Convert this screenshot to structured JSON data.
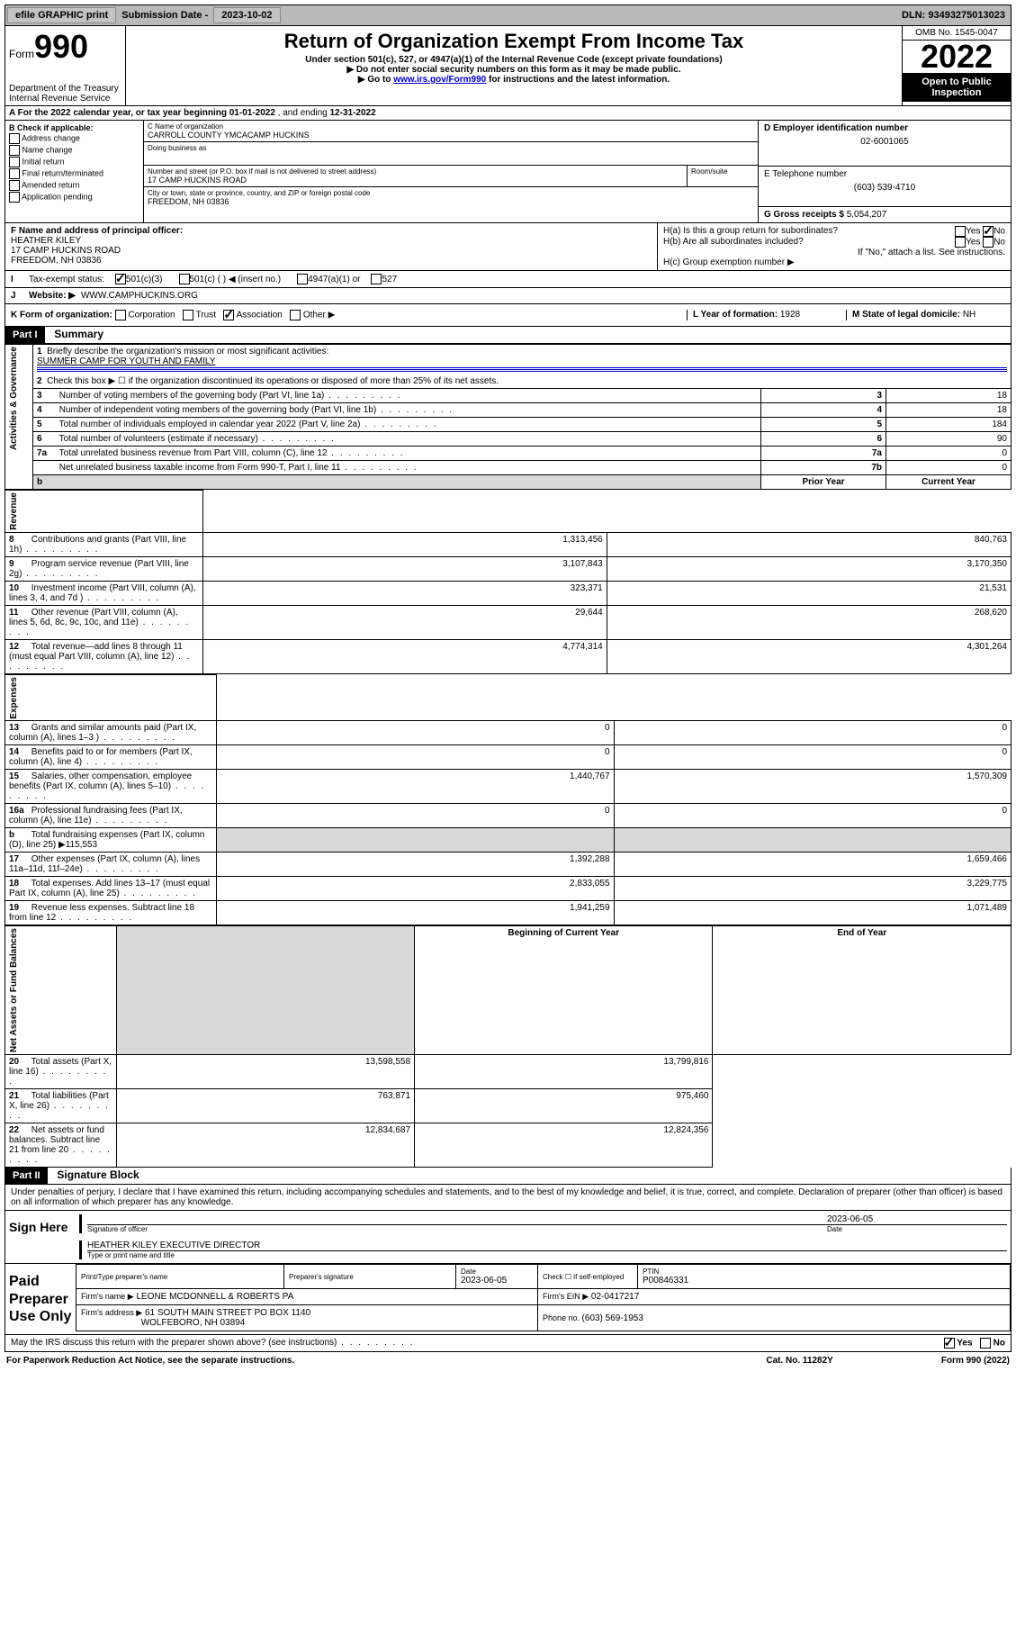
{
  "topbar": {
    "efile": "efile GRAPHIC print",
    "submission_label": "Submission Date - ",
    "submission_date": "2023-10-02",
    "dln_label": "DLN: ",
    "dln": "93493275013023"
  },
  "header": {
    "form_label": "Form",
    "form_no": "990",
    "dept": "Department of the Treasury",
    "irs": "Internal Revenue Service",
    "title": "Return of Organization Exempt From Income Tax",
    "sub1": "Under section 501(c), 527, or 4947(a)(1) of the Internal Revenue Code (except private foundations)",
    "sub2": "▶ Do not enter social security numbers on this form as it may be made public.",
    "sub3_pre": "▶ Go to ",
    "sub3_link": "www.irs.gov/Form990",
    "sub3_post": " for instructions and the latest information.",
    "omb": "OMB No. 1545-0047",
    "year": "2022",
    "open": "Open to Public Inspection"
  },
  "A": {
    "text_pre": "A For the 2022 calendar year, or tax year beginning ",
    "begin": "01-01-2022",
    "mid": "  , and ending ",
    "end": "12-31-2022"
  },
  "B": {
    "label": "B Check if applicable:",
    "items": [
      "Address change",
      "Name change",
      "Initial return",
      "Final return/terminated",
      "Amended return",
      "Application pending"
    ]
  },
  "C": {
    "name_label": "C Name of organization",
    "name": "CARROLL COUNTY YMCACAMP HUCKINS",
    "dba_label": "Doing business as",
    "dba": "",
    "street_label": "Number and street (or P.O. box if mail is not delivered to street address)",
    "room_label": "Room/suite",
    "street": "17 CAMP HUCKINS ROAD",
    "city_label": "City or town, state or province, country, and ZIP or foreign postal code",
    "city": "FREEDOM, NH  03836"
  },
  "D": {
    "label": "D Employer identification number",
    "value": "02-6001065"
  },
  "E": {
    "label": "E Telephone number",
    "value": "(603) 539-4710"
  },
  "G": {
    "label": "G Gross receipts $ ",
    "value": "5,054,207"
  },
  "F": {
    "label": "F  Name and address of principal officer:",
    "name": "HEATHER KILEY",
    "street": "17 CAMP HUCKINS ROAD",
    "city": "FREEDOM, NH  03836"
  },
  "H": {
    "a": "H(a)  Is this a group return for subordinates?",
    "a_yes": "Yes",
    "a_no": "No",
    "b": "H(b)  Are all subordinates included?",
    "b_yes": "Yes",
    "b_no": "No",
    "b_note": "If \"No,\" attach a list. See instructions.",
    "c": "H(c)  Group exemption number ▶"
  },
  "I": {
    "label": "Tax-exempt status:",
    "c3": "501(c)(3)",
    "c": "501(c) (   ) ◀ (insert no.)",
    "a4947": "4947(a)(1) or",
    "s527": "527"
  },
  "J": {
    "label": "Website: ▶",
    "value": "WWW.CAMPHUCKINS.ORG"
  },
  "K": {
    "label": "K Form of organization:",
    "corp": "Corporation",
    "trust": "Trust",
    "assoc": "Association",
    "other": "Other ▶"
  },
  "L": {
    "label": "L Year of formation: ",
    "value": "1928"
  },
  "M": {
    "label": "M State of legal domicile: ",
    "value": "NH"
  },
  "part1": {
    "header": "Part I",
    "title": "Summary",
    "q1": "Briefly describe the organization's mission or most significant activities:",
    "q1val": "SUMMER CAMP FOR YOUTH AND FAMILY",
    "q2": "Check this box ▶ ☐  if the organization discontinued its operations or disposed of more than 25% of its net assets.",
    "sections": {
      "gov": "Activities & Governance",
      "rev": "Revenue",
      "exp": "Expenses",
      "net": "Net Assets or Fund Balances"
    },
    "cols": {
      "prior": "Prior Year",
      "current": "Current Year",
      "boy": "Beginning of Current Year",
      "eoy": "End of Year"
    },
    "lines_gov": [
      {
        "n": "3",
        "d": "Number of voting members of the governing body (Part VI, line 1a)",
        "box": "3",
        "v": "18"
      },
      {
        "n": "4",
        "d": "Number of independent voting members of the governing body (Part VI, line 1b)",
        "box": "4",
        "v": "18"
      },
      {
        "n": "5",
        "d": "Total number of individuals employed in calendar year 2022 (Part V, line 2a)",
        "box": "5",
        "v": "184"
      },
      {
        "n": "6",
        "d": "Total number of volunteers (estimate if necessary)",
        "box": "6",
        "v": "90"
      },
      {
        "n": "7a",
        "d": "Total unrelated business revenue from Part VIII, column (C), line 12",
        "box": "7a",
        "v": "0"
      },
      {
        "n": "",
        "d": "Net unrelated business taxable income from Form 990-T, Part I, line 11",
        "box": "7b",
        "v": "0"
      }
    ],
    "lines_rev": [
      {
        "n": "8",
        "d": "Contributions and grants (Part VIII, line 1h)",
        "p": "1,313,456",
        "c": "840,763"
      },
      {
        "n": "9",
        "d": "Program service revenue (Part VIII, line 2g)",
        "p": "3,107,843",
        "c": "3,170,350"
      },
      {
        "n": "10",
        "d": "Investment income (Part VIII, column (A), lines 3, 4, and 7d )",
        "p": "323,371",
        "c": "21,531"
      },
      {
        "n": "11",
        "d": "Other revenue (Part VIII, column (A), lines 5, 6d, 8c, 9c, 10c, and 11e)",
        "p": "29,644",
        "c": "268,620"
      },
      {
        "n": "12",
        "d": "Total revenue—add lines 8 through 11 (must equal Part VIII, column (A), line 12)",
        "p": "4,774,314",
        "c": "4,301,264"
      }
    ],
    "lines_exp": [
      {
        "n": "13",
        "d": "Grants and similar amounts paid (Part IX, column (A), lines 1–3 )",
        "p": "0",
        "c": "0"
      },
      {
        "n": "14",
        "d": "Benefits paid to or for members (Part IX, column (A), line 4)",
        "p": "0",
        "c": "0"
      },
      {
        "n": "15",
        "d": "Salaries, other compensation, employee benefits (Part IX, column (A), lines 5–10)",
        "p": "1,440,767",
        "c": "1,570,309"
      },
      {
        "n": "16a",
        "d": "Professional fundraising fees (Part IX, column (A), line 11e)",
        "p": "0",
        "c": "0"
      },
      {
        "n": "b",
        "d": "Total fundraising expenses (Part IX, column (D), line 25) ▶115,553",
        "p": "",
        "c": "",
        "grey": true
      },
      {
        "n": "17",
        "d": "Other expenses (Part IX, column (A), lines 11a–11d, 11f–24e)",
        "p": "1,392,288",
        "c": "1,659,466"
      },
      {
        "n": "18",
        "d": "Total expenses. Add lines 13–17 (must equal Part IX, column (A), line 25)",
        "p": "2,833,055",
        "c": "3,229,775"
      },
      {
        "n": "19",
        "d": "Revenue less expenses. Subtract line 18 from line 12",
        "p": "1,941,259",
        "c": "1,071,489"
      }
    ],
    "lines_net": [
      {
        "n": "20",
        "d": "Total assets (Part X, line 16)",
        "p": "13,598,558",
        "c": "13,799,816"
      },
      {
        "n": "21",
        "d": "Total liabilities (Part X, line 26)",
        "p": "763,871",
        "c": "975,460"
      },
      {
        "n": "22",
        "d": "Net assets or fund balances. Subtract line 21 from line 20",
        "p": "12,834,687",
        "c": "12,824,356"
      }
    ]
  },
  "part2": {
    "header": "Part II",
    "title": "Signature Block",
    "decl": "Under penalties of perjury, I declare that I have examined this return, including accompanying schedules and statements, and to the best of my knowledge and belief, it is true, correct, and complete. Declaration of preparer (other than officer) is based on all information of which preparer has any knowledge.",
    "sign_here": "Sign Here",
    "sig_officer": "Signature of officer",
    "sig_date": "2023-06-05",
    "date_label": "Date",
    "officer_name": "HEATHER KILEY EXECUTIVE DIRECTOR",
    "type_name": "Type or print name and title",
    "paid": "Paid Preparer Use Only",
    "prep_name_label": "Print/Type preparer's name",
    "prep_sig_label": "Preparer's signature",
    "prep_date_label": "Date",
    "prep_date": "2023-06-05",
    "check_self": "Check ☐ if self-employed",
    "ptin_label": "PTIN",
    "ptin": "P00846331",
    "firm_name_label": "Firm's name    ▶",
    "firm_name": "LEONE MCDONNELL & ROBERTS PA",
    "firm_ein_label": "Firm's EIN ▶",
    "firm_ein": "02-0417217",
    "firm_addr_label": "Firm's address ▶",
    "firm_addr1": "61 SOUTH MAIN STREET PO BOX 1140",
    "firm_addr2": "WOLFEBORO, NH  03894",
    "phone_label": "Phone no. ",
    "phone": "(603) 569-1953",
    "discuss": "May the IRS discuss this return with the preparer shown above? (see instructions)",
    "yes": "Yes",
    "no": "No"
  },
  "footer": {
    "left": "For Paperwork Reduction Act Notice, see the separate instructions.",
    "mid": "Cat. No. 11282Y",
    "right": "Form 990 (2022)"
  }
}
